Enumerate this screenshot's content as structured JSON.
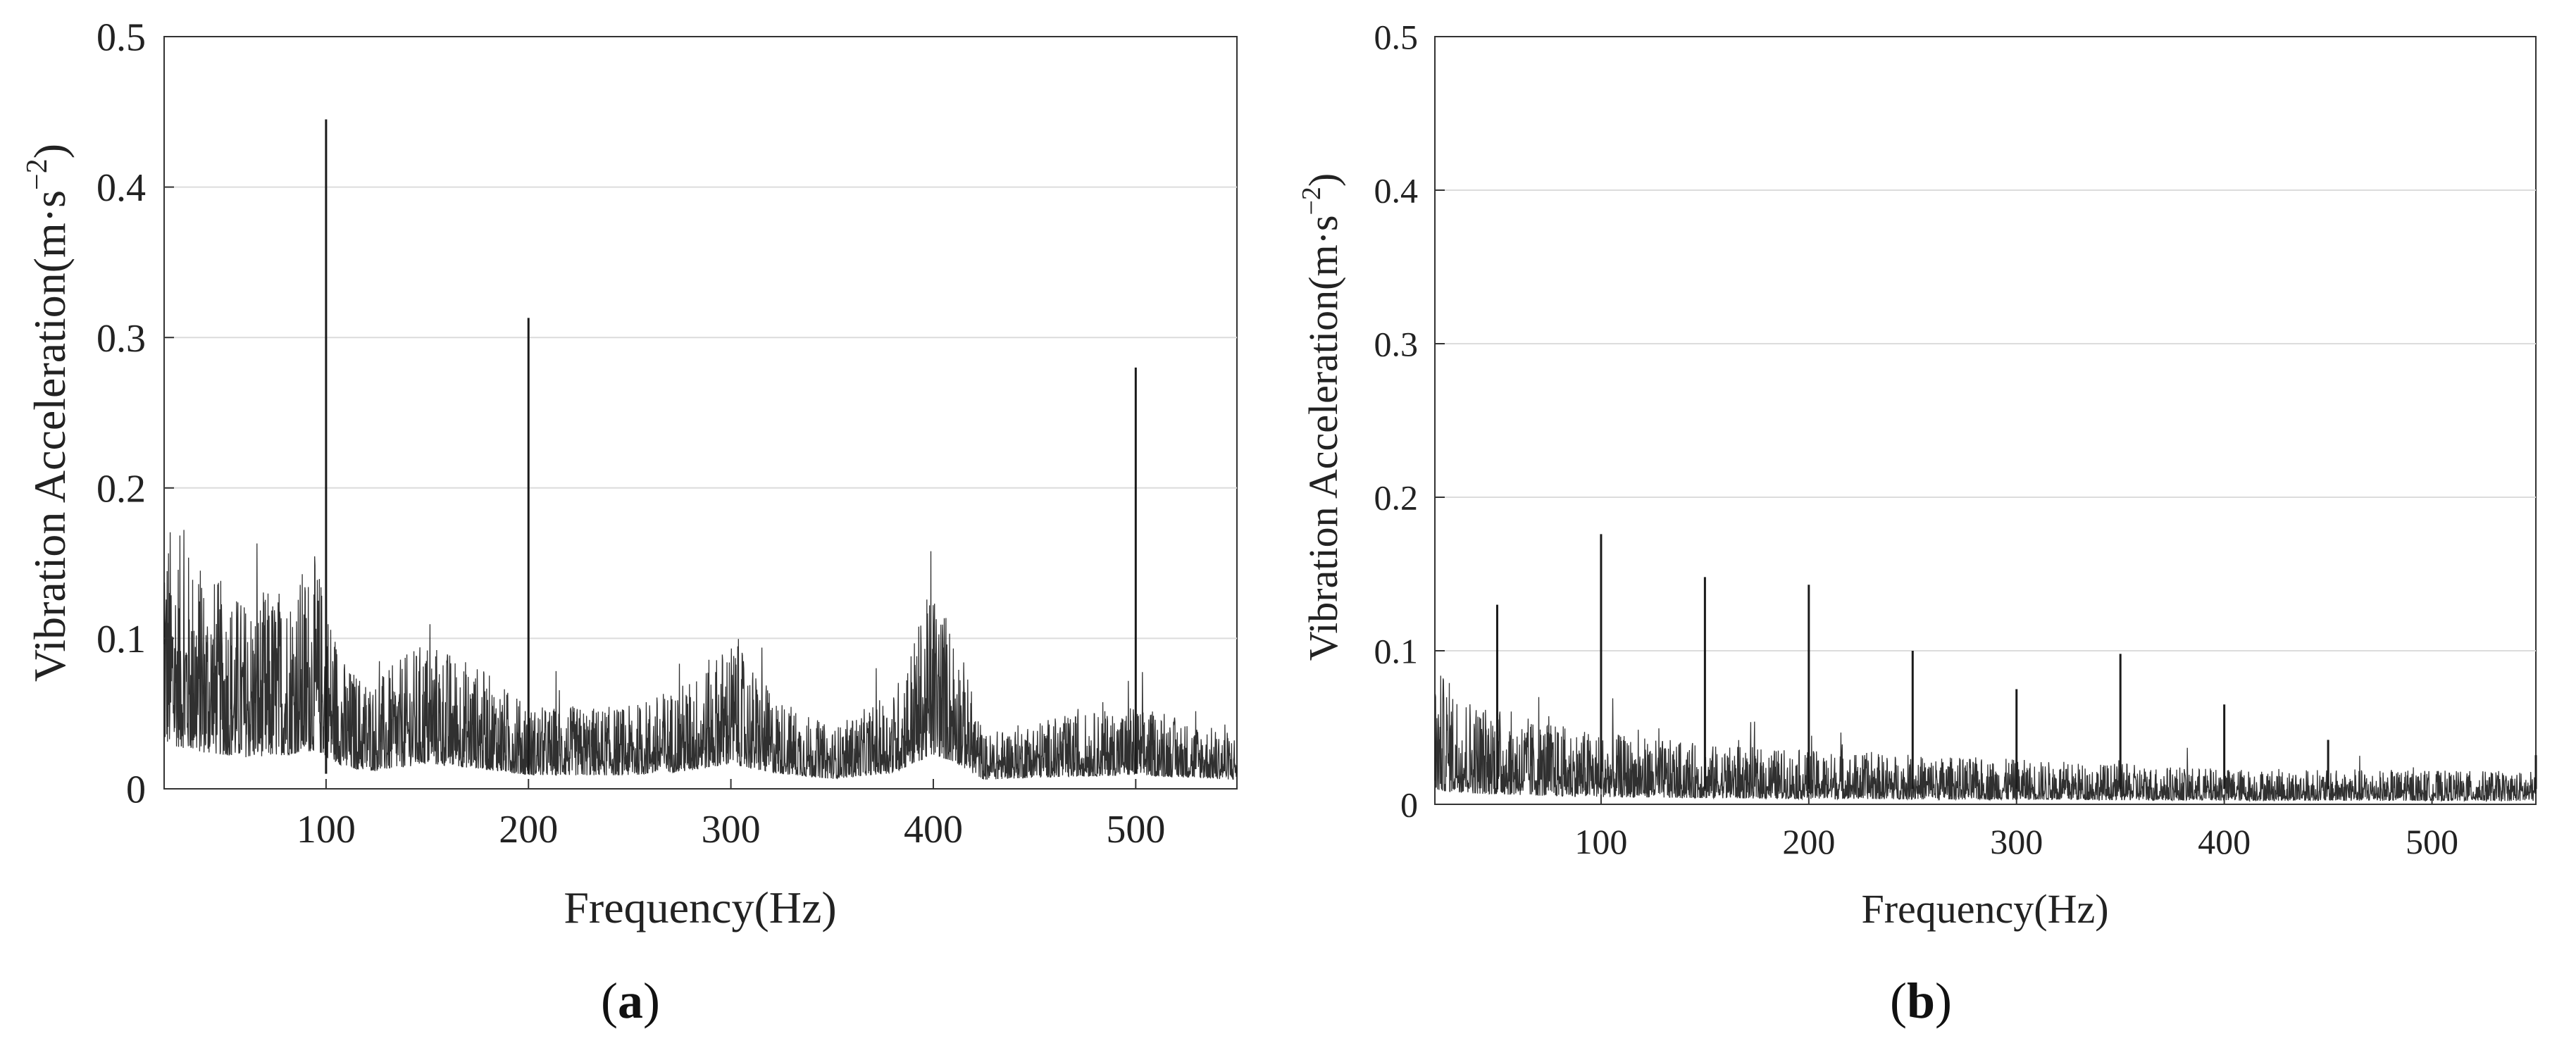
{
  "chart_data": [
    {
      "id": "a",
      "panel_label": "a",
      "type": "line",
      "xlabel": "Frequency(Hz)",
      "ylabel": "Vibration  Acceleration(m·s",
      "ylabel_exp": "−2",
      "ylabel_close": ")",
      "xlim": [
        20,
        550
      ],
      "ylim": [
        0,
        0.5
      ],
      "xticks": [
        100,
        200,
        300,
        400,
        500
      ],
      "yticks": [
        0,
        0.1,
        0.2,
        0.3,
        0.4,
        0.5
      ],
      "grid": "horizontal",
      "line_color": "#1a1a1a",
      "peaks": [
        {
          "x": 100,
          "y": 0.445
        },
        {
          "x": 200,
          "y": 0.313
        },
        {
          "x": 500,
          "y": 0.28
        }
      ],
      "envelope": [
        {
          "x": 20,
          "y": 0.1
        },
        {
          "x": 40,
          "y": 0.08
        },
        {
          "x": 60,
          "y": 0.07
        },
        {
          "x": 80,
          "y": 0.075
        },
        {
          "x": 95,
          "y": 0.085
        },
        {
          "x": 110,
          "y": 0.045
        },
        {
          "x": 125,
          "y": 0.04
        },
        {
          "x": 150,
          "y": 0.055
        },
        {
          "x": 175,
          "y": 0.045
        },
        {
          "x": 200,
          "y": 0.03
        },
        {
          "x": 250,
          "y": 0.03
        },
        {
          "x": 280,
          "y": 0.04
        },
        {
          "x": 300,
          "y": 0.055
        },
        {
          "x": 320,
          "y": 0.035
        },
        {
          "x": 350,
          "y": 0.022
        },
        {
          "x": 380,
          "y": 0.035
        },
        {
          "x": 400,
          "y": 0.075
        },
        {
          "x": 410,
          "y": 0.06
        },
        {
          "x": 425,
          "y": 0.02
        },
        {
          "x": 450,
          "y": 0.025
        },
        {
          "x": 500,
          "y": 0.03
        },
        {
          "x": 550,
          "y": 0.02
        }
      ],
      "noise_spread": 0.7
    },
    {
      "id": "b",
      "panel_label": "b",
      "type": "line",
      "xlabel": "Frequency(Hz)",
      "ylabel": "Vibration  Acceleration(m·s",
      "ylabel_exp": "−2",
      "ylabel_close": ")",
      "xlim": [
        20,
        550
      ],
      "ylim": [
        0,
        0.5
      ],
      "xticks": [
        100,
        200,
        300,
        400,
        500
      ],
      "yticks": [
        0,
        0.1,
        0.2,
        0.3,
        0.4,
        0.5
      ],
      "grid": "horizontal",
      "line_color": "#1a1a1a",
      "peaks": [
        {
          "x": 50,
          "y": 0.13
        },
        {
          "x": 100,
          "y": 0.176
        },
        {
          "x": 150,
          "y": 0.148
        },
        {
          "x": 200,
          "y": 0.143
        },
        {
          "x": 250,
          "y": 0.1
        },
        {
          "x": 300,
          "y": 0.075
        },
        {
          "x": 350,
          "y": 0.098
        },
        {
          "x": 400,
          "y": 0.065
        },
        {
          "x": 450,
          "y": 0.042
        },
        {
          "x": 550,
          "y": 0.032
        }
      ],
      "envelope": [
        {
          "x": 20,
          "y": 0.045
        },
        {
          "x": 40,
          "y": 0.035
        },
        {
          "x": 70,
          "y": 0.028
        },
        {
          "x": 100,
          "y": 0.024
        },
        {
          "x": 150,
          "y": 0.02
        },
        {
          "x": 200,
          "y": 0.018
        },
        {
          "x": 300,
          "y": 0.015
        },
        {
          "x": 400,
          "y": 0.012
        },
        {
          "x": 550,
          "y": 0.011
        }
      ],
      "noise_spread": 0.8
    }
  ]
}
